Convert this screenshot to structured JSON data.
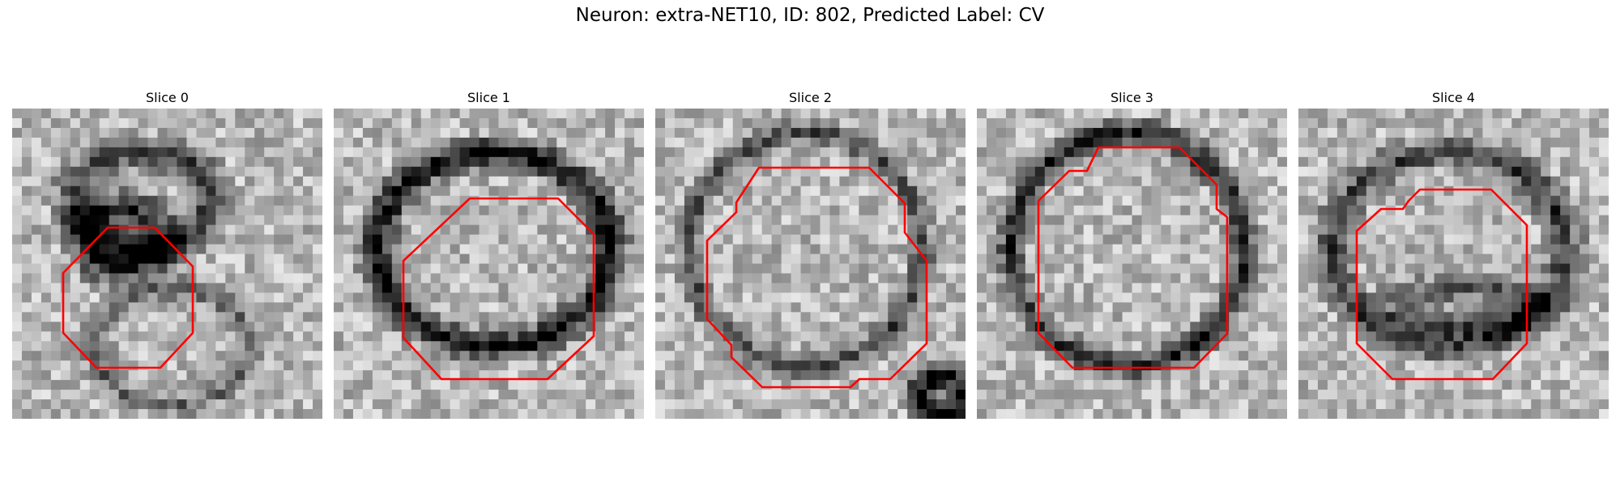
{
  "figure": {
    "title": "Neuron: extra-NET10, ID: 802, Predicted Label: CV"
  },
  "panels": [
    {
      "title": "Slice 0"
    },
    {
      "title": "Slice 1"
    },
    {
      "title": "Slice 2"
    },
    {
      "title": "Slice 3"
    },
    {
      "title": "Slice 4"
    }
  ],
  "colors": {
    "contour": "#ff0000",
    "background": "#ffffff"
  }
}
